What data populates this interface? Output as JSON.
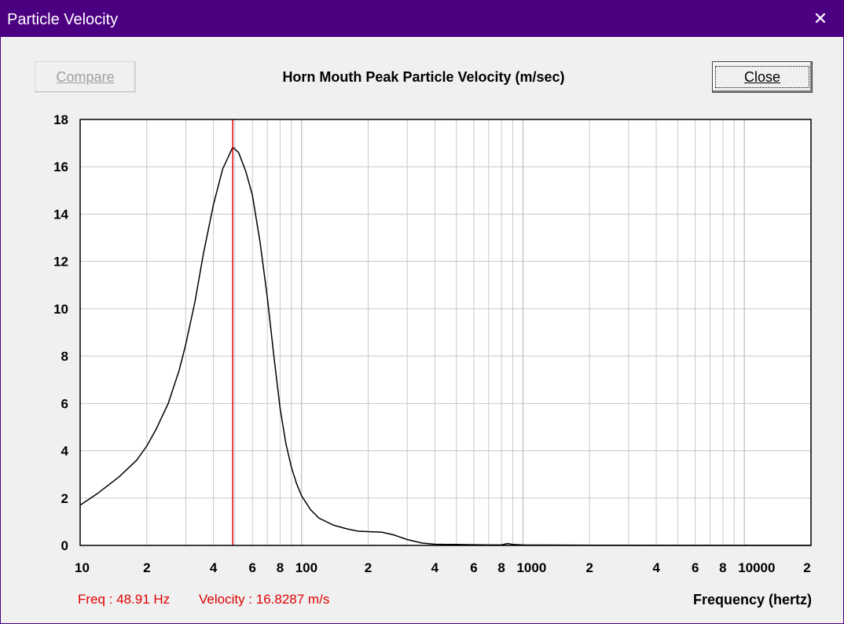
{
  "window": {
    "title": "Particle Velocity",
    "close_glyph": "✕"
  },
  "toolbar": {
    "compare_label": "Compare",
    "close_label": "Close"
  },
  "readout": {
    "freq": "Freq : 48.91 Hz",
    "velocity": "Velocity : 16.8287 m/s"
  },
  "colors": {
    "titlebar": "#4b0082",
    "curve": "#000000",
    "marker": "#e00000",
    "grid": "#c8c8c8"
  },
  "chart_data": {
    "type": "line",
    "title": "Horn Mouth Peak Particle Velocity (m/sec)",
    "xlabel": "Frequency (hertz)",
    "ylabel": "",
    "xscale": "log",
    "xlim": [
      10,
      20000
    ],
    "ylim": [
      0,
      18
    ],
    "yticks": [
      0,
      2,
      4,
      6,
      8,
      10,
      12,
      14,
      16,
      18
    ],
    "xtick_labels": [
      {
        "value": 10,
        "label": "10"
      },
      {
        "value": 20,
        "label": "2"
      },
      {
        "value": 40,
        "label": "4"
      },
      {
        "value": 60,
        "label": "6"
      },
      {
        "value": 80,
        "label": "8"
      },
      {
        "value": 100,
        "label": "100"
      },
      {
        "value": 200,
        "label": "2"
      },
      {
        "value": 400,
        "label": "4"
      },
      {
        "value": 600,
        "label": "6"
      },
      {
        "value": 800,
        "label": "8"
      },
      {
        "value": 1000,
        "label": "1000"
      },
      {
        "value": 2000,
        "label": "2"
      },
      {
        "value": 4000,
        "label": "4"
      },
      {
        "value": 6000,
        "label": "6"
      },
      {
        "value": 8000,
        "label": "8"
      },
      {
        "value": 10000,
        "label": "10000"
      },
      {
        "value": 20000,
        "label": "2"
      }
    ],
    "marker_freq": 48.91,
    "series": [
      {
        "name": "Particle Velocity",
        "x": [
          10,
          12,
          15,
          18,
          20,
          22,
          25,
          28,
          30,
          33,
          36,
          40,
          44,
          48.91,
          52,
          56,
          60,
          65,
          70,
          75,
          80,
          85,
          90,
          95,
          100,
          110,
          120,
          140,
          160,
          180,
          200,
          230,
          260,
          300,
          350,
          400,
          450,
          500,
          600,
          700,
          800,
          850,
          900,
          1000,
          2000,
          5000,
          10000,
          20000
        ],
        "y": [
          1.7,
          2.2,
          2.9,
          3.6,
          4.2,
          4.9,
          6.0,
          7.4,
          8.5,
          10.3,
          12.3,
          14.4,
          15.9,
          16.83,
          16.6,
          15.8,
          14.8,
          12.8,
          10.5,
          8.0,
          5.8,
          4.3,
          3.3,
          2.6,
          2.1,
          1.5,
          1.15,
          0.85,
          0.7,
          0.6,
          0.58,
          0.56,
          0.45,
          0.25,
          0.1,
          0.05,
          0.04,
          0.04,
          0.03,
          0.02,
          0.02,
          0.08,
          0.04,
          0.02,
          0.01,
          0.0,
          0.0,
          0.0
        ]
      }
    ]
  }
}
